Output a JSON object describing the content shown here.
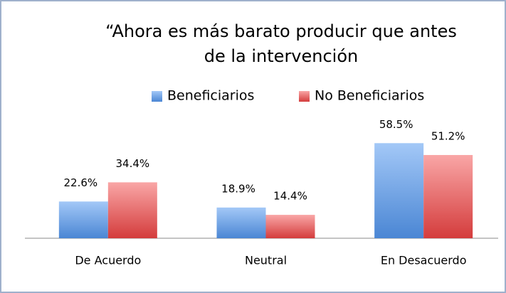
{
  "chart_data": {
    "type": "bar",
    "title": [
      "“Ahora es más barato producir que antes",
      "de la intervención"
    ],
    "categories": [
      "De Acuerdo",
      "Neutral",
      "En Desacuerdo"
    ],
    "series": [
      {
        "name": "Beneficiarios",
        "color": [
          "#a3c8f7",
          "#4a86d4"
        ],
        "values": [
          22.6,
          18.9,
          58.5
        ],
        "value_labels": [
          "22.6%",
          "18.9%",
          "58.5%"
        ]
      },
      {
        "name": "No Beneficiarios",
        "color": [
          "#f9a6a6",
          "#d43c3c"
        ],
        "values": [
          34.4,
          14.4,
          51.2
        ],
        "value_labels": [
          "34.4%",
          "14.4%",
          "51.2%"
        ]
      }
    ],
    "ylim": [
      0,
      70
    ],
    "legend": "top"
  }
}
